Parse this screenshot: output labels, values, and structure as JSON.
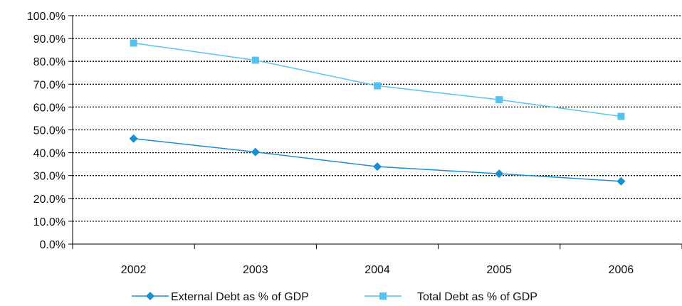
{
  "chart_data": {
    "type": "line",
    "categories": [
      "2002",
      "2003",
      "2004",
      "2005",
      "2006"
    ],
    "series": [
      {
        "name": "External Debt as % of GDP",
        "values": [
          46.2,
          40.3,
          33.9,
          30.8,
          27.5
        ],
        "color": "#1A8FD0",
        "marker": "diamond"
      },
      {
        "name": "Total Debt as % of GDP",
        "values": [
          88.0,
          80.5,
          69.3,
          63.2,
          55.9
        ],
        "color": "#55C3EF",
        "marker": "square"
      }
    ],
    "y_ticks": [
      "0.0%",
      "10.0%",
      "20.0%",
      "30.0%",
      "40.0%",
      "50.0%",
      "60.0%",
      "70.0%",
      "80.0%",
      "90.0%",
      "100.0%"
    ],
    "ylim": [
      0,
      100
    ],
    "y_format": "percent",
    "grid": "horizontal-dotted",
    "legend_position": "bottom",
    "title": "",
    "xlabel": "",
    "ylabel": ""
  }
}
